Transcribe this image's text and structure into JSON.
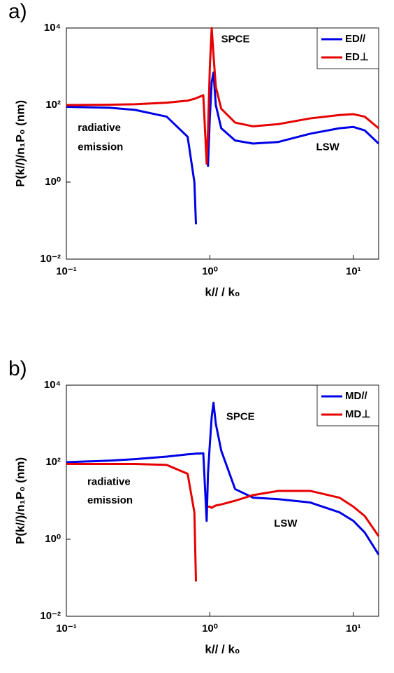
{
  "chart_data": [
    {
      "type": "line",
      "panel_label": "a)",
      "x_label": "k// / k₀",
      "y_label": "P(k//)/n₁P₀ (nm)",
      "log_x": true,
      "log_y": true,
      "grid": false,
      "legend": "upper right",
      "x": [
        0.1,
        0.2,
        0.3,
        0.5,
        0.7,
        0.78,
        0.8,
        0.9,
        0.95,
        0.97,
        1.0,
        1.03,
        1.06,
        1.1,
        1.2,
        1.5,
        2,
        3,
        5,
        8,
        10,
        12,
        15
      ],
      "series": [
        {
          "name": "ED//",
          "color": "#0000e6",
          "values": [
            90,
            85,
            75,
            50,
            15,
            1,
            0.08,
            null,
            null,
            2.5,
            50,
            400,
            700,
            100,
            25,
            12,
            10,
            11,
            18,
            25,
            27,
            22,
            10
          ]
        },
        {
          "name": "ED⊥",
          "color": "#e60000",
          "values": [
            100,
            102,
            105,
            115,
            130,
            145,
            150,
            180,
            3,
            20,
            1000,
            10000,
            2000,
            300,
            80,
            35,
            28,
            32,
            45,
            55,
            58,
            50,
            25
          ]
        }
      ],
      "xlim": [
        0.1,
        15
      ],
      "ylim": [
        0.01,
        10000
      ],
      "xticks": [
        {
          "value": 0.1,
          "label": "10⁻¹"
        },
        {
          "value": 1,
          "label": "10⁰"
        },
        {
          "value": 10,
          "label": "10¹"
        }
      ],
      "yticks": [
        {
          "value": 0.01,
          "label": "10⁻²"
        },
        {
          "value": 1,
          "label": "10⁰"
        },
        {
          "value": 100,
          "label": "10²"
        },
        {
          "value": 10000,
          "label": "10⁴"
        }
      ],
      "annotations": [
        {
          "text": "SPCE",
          "x": 1.2,
          "y": 5000
        },
        {
          "text": "radiative",
          "x": 0.12,
          "y": 25
        },
        {
          "text": "emission",
          "x": 0.12,
          "y": 8
        },
        {
          "text": "LSW",
          "x": 5.5,
          "y": 8
        }
      ]
    },
    {
      "type": "line",
      "panel_label": "b)",
      "x_label": "k// / k₀",
      "y_label": "P(k//)/n₁P₀ (nm)",
      "log_x": true,
      "log_y": true,
      "grid": false,
      "legend": "upper right",
      "x": [
        0.1,
        0.2,
        0.3,
        0.5,
        0.7,
        0.78,
        0.8,
        0.9,
        0.95,
        0.97,
        1.0,
        1.03,
        1.06,
        1.1,
        1.2,
        1.5,
        2,
        3,
        5,
        8,
        10,
        12,
        15
      ],
      "series": [
        {
          "name": "MD//",
          "color": "#0000e6",
          "values": [
            100,
            110,
            120,
            140,
            160,
            165,
            167,
            170,
            3,
            50,
            300,
            1500,
            3500,
            1000,
            200,
            20,
            12,
            11,
            9,
            5,
            3,
            1.5,
            0.4
          ]
        },
        {
          "name": "MD⊥",
          "color": "#e60000",
          "values": [
            90,
            90,
            90,
            85,
            50,
            5,
            0.08,
            null,
            null,
            7,
            7,
            6.5,
            7,
            7.5,
            8,
            10,
            14,
            18,
            18,
            12,
            7,
            4,
            1.2
          ]
        }
      ],
      "xlim": [
        0.1,
        15
      ],
      "ylim": [
        0.01,
        10000
      ],
      "xticks": [
        {
          "value": 0.1,
          "label": "10⁻¹"
        },
        {
          "value": 1,
          "label": "10⁰"
        },
        {
          "value": 10,
          "label": "10¹"
        }
      ],
      "yticks": [
        {
          "value": 0.01,
          "label": "10⁻²"
        },
        {
          "value": 1,
          "label": "10⁰"
        },
        {
          "value": 100,
          "label": "10²"
        },
        {
          "value": 10000,
          "label": "10⁴"
        }
      ],
      "annotations": [
        {
          "text": "SPCE",
          "x": 1.3,
          "y": 1500
        },
        {
          "text": "radiative",
          "x": 0.14,
          "y": 30
        },
        {
          "text": "emission",
          "x": 0.14,
          "y": 10
        },
        {
          "text": "LSW",
          "x": 2.8,
          "y": 2.5
        }
      ]
    }
  ]
}
